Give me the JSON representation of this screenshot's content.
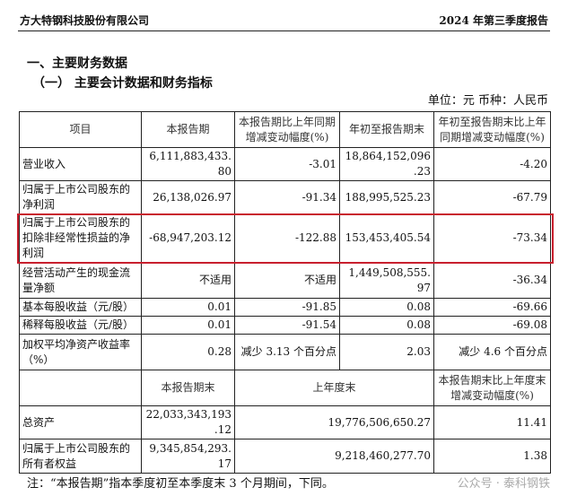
{
  "header": {
    "company": "方大特钢科技股份有限公司",
    "report": "2024 年第三季度报告"
  },
  "section": {
    "title1": "一、主要财务数据",
    "title2": "（一）  主要会计数据和财务指标",
    "unit": "单位：元   币种：人民币"
  },
  "table": {
    "headers": [
      "项目",
      "本报告期",
      "本报告期比上年同期增减变动幅度(%)",
      "年初至报告期末",
      "年初至报告期末比上年同期增减变动幅度(%)"
    ],
    "rows": [
      [
        "营业收入",
        "6,111,883,433.80",
        "-3.01",
        "18,864,152,096.23",
        "-4.20"
      ],
      [
        "归属于上市公司股东的净利润",
        "26,138,026.97",
        "-91.34",
        "188,995,525.23",
        "-67.79"
      ],
      [
        "归属于上市公司股东的扣除非经常性损益的净利润",
        "-68,947,203.12",
        "-122.88",
        "153,453,405.54",
        "-73.34"
      ],
      [
        "经营活动产生的现金流量净额",
        "不适用",
        "不适用",
        "1,449,508,555.97",
        "-36.34"
      ],
      [
        "基本每股收益（元/股）",
        "0.01",
        "-91.85",
        "0.08",
        "-69.66"
      ],
      [
        "稀释每股收益（元/股）",
        "0.01",
        "-91.54",
        "0.08",
        "-69.08"
      ],
      [
        "加权平均净资产收益率（%）",
        "0.28",
        "减少 3.13 个百分点",
        "2.03",
        "减少 4.6 个百分点"
      ]
    ],
    "headers2": [
      "",
      "本报告期末",
      "上年度末",
      "本报告期末比上年度末增减变动幅度(%)"
    ],
    "rows2": [
      [
        "总资产",
        "22,033,343,193.12",
        "19,776,506,650.27",
        "11.41"
      ],
      [
        "归属于上市公司股东的所有者权益",
        "9,345,854,293.17",
        "9,218,460,277.70",
        "1.38"
      ]
    ],
    "highlight_color": "#c8202e"
  },
  "note": "注：“本报告期”指本季度初至本季度末 3 个月期间，下同。",
  "watermark": "公众号 · 泰科钢铁"
}
